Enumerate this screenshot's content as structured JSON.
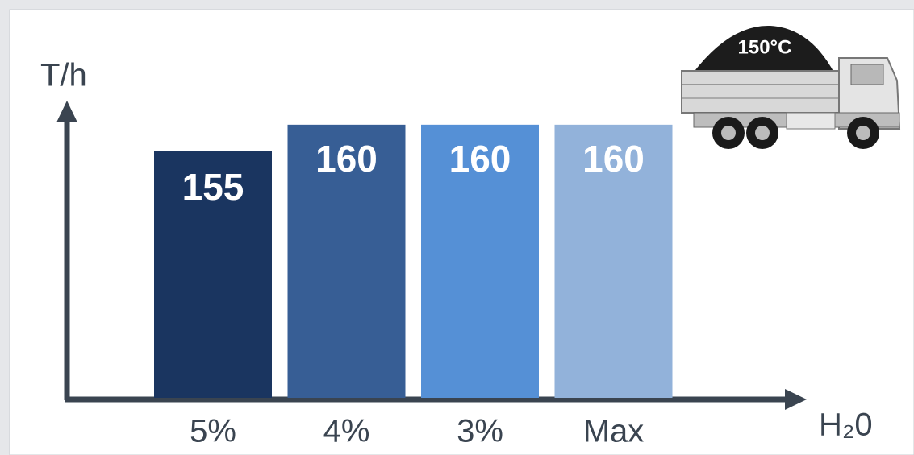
{
  "chart_data": {
    "type": "bar",
    "y_label": "T/h",
    "x_label": "H₂0",
    "badge": "150°C",
    "categories": [
      "5%",
      "4%",
      "3%",
      "Max"
    ],
    "values": [
      155,
      160,
      160,
      160
    ],
    "colors": [
      "#1a3560",
      "#375e95",
      "#5590d6",
      "#92b2da"
    ],
    "ylim": [
      108.5,
      170
    ]
  }
}
